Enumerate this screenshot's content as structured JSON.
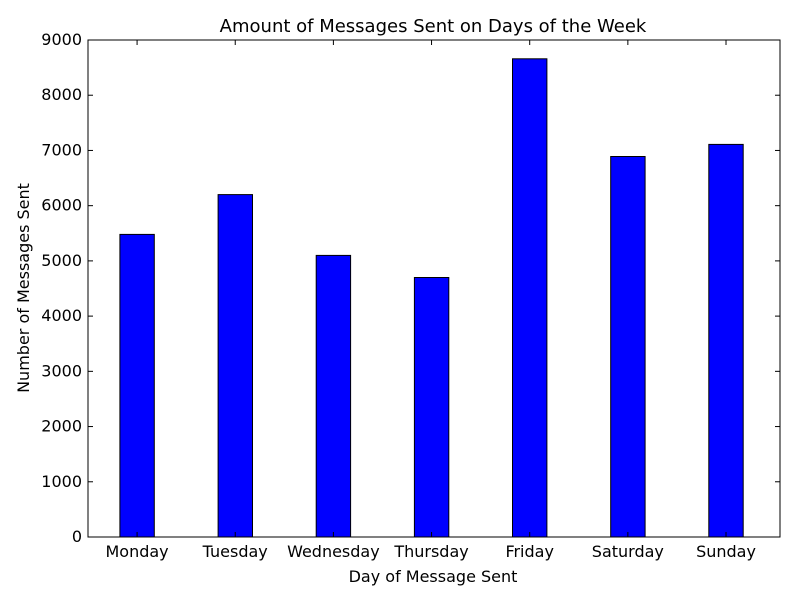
{
  "chart_data": {
    "type": "bar",
    "title": "Amount of Messages Sent on Days of the Week",
    "xlabel": "Day of Message Sent",
    "ylabel": "Number of Messages Sent",
    "categories": [
      "Monday",
      "Tuesday",
      "Wednesday",
      "Thursday",
      "Friday",
      "Saturday",
      "Sunday"
    ],
    "values": [
      5480,
      6200,
      5100,
      4700,
      8660,
      6890,
      7110
    ],
    "ylim": [
      0,
      9000
    ],
    "yticks": [
      0,
      1000,
      2000,
      3000,
      4000,
      5000,
      6000,
      7000,
      8000,
      9000
    ],
    "bar_color": "#0000ff",
    "edge_color": "#000000",
    "grid": false,
    "legend": "none"
  }
}
